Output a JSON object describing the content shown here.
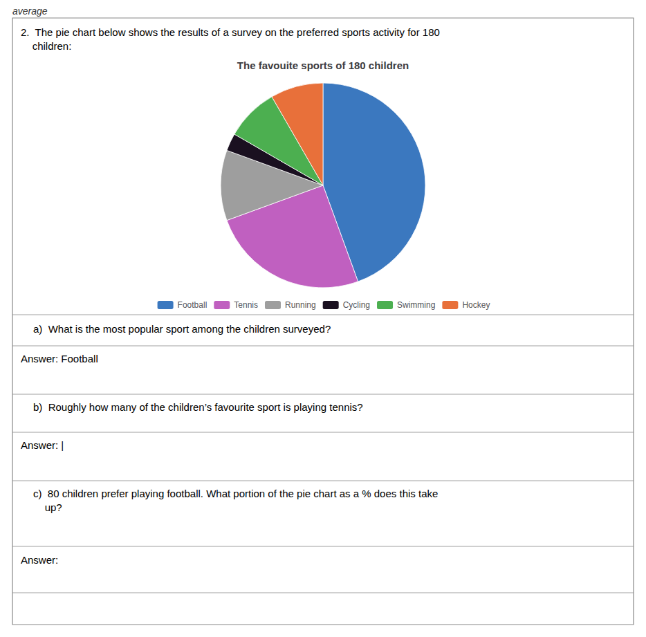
{
  "chart_data": {
    "type": "pie",
    "title": "The favouite sports of 180 children",
    "categories": [
      "Football",
      "Tennis",
      "Running",
      "Cycling",
      "Swimming",
      "Hockey"
    ],
    "values": [
      80,
      45,
      20,
      5,
      15,
      15
    ],
    "colors": [
      "#3b78bf",
      "#c060c0",
      "#9e9e9e",
      "#1a1020",
      "#4caf50",
      "#e8703a"
    ],
    "legend": "bottom",
    "annotations": [
      "average",
      "2.  The pie chart below shows the results of a survey on the preferred sports activity for 180\n    children:",
      "a)  What is the most popular sport among the children surveyed?",
      "Answer: Football",
      "b)  Roughly how many of the children’s favourite sport is playing tennis?",
      "Answer: |",
      "c)  80 children prefer playing football. What portion of the pie chart as a % does this take\n    up?",
      "Answer:"
    ]
  }
}
